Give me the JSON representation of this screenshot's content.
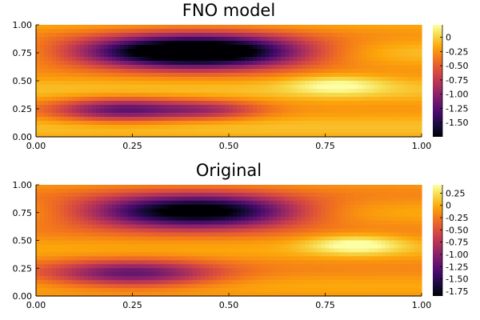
{
  "chart_data": [
    {
      "type": "heatmap",
      "title": "FNO model",
      "xlabel": "",
      "ylabel": "",
      "xlim": [
        0,
        1
      ],
      "ylim": [
        0,
        1
      ],
      "x_ticks": [
        "0.00",
        "0.25",
        "0.50",
        "0.75",
        "1.00"
      ],
      "y_ticks": [
        "0.00",
        "0.25",
        "0.50",
        "0.75",
        "1.00"
      ],
      "colormap": "inferno",
      "colorbar_range": [
        -1.75,
        0.22
      ],
      "colorbar_ticks": [
        "0",
        "-0.25",
        "-0.50",
        "-0.75",
        "-1.00",
        "-1.25",
        "-1.50"
      ],
      "features": [
        {
          "kind": "low",
          "x": 0.45,
          "y": 0.76,
          "depth": -1.95,
          "sx": 0.18,
          "sy": 0.1
        },
        {
          "kind": "low",
          "x": 0.25,
          "y": 0.76,
          "depth": -0.65,
          "sx": 0.16,
          "sy": 0.09
        },
        {
          "kind": "low",
          "x": 0.22,
          "y": 0.24,
          "depth": -0.95,
          "sx": 0.12,
          "sy": 0.07
        },
        {
          "kind": "low",
          "x": 0.45,
          "y": 0.24,
          "depth": -0.55,
          "sx": 0.1,
          "sy": 0.06
        },
        {
          "kind": "high",
          "x": 0.78,
          "y": 0.46,
          "height": 0.35,
          "sx": 0.09,
          "sy": 0.06
        }
      ],
      "base_value": -0.15
    },
    {
      "type": "heatmap",
      "title": "Original",
      "xlabel": "",
      "ylabel": "",
      "xlim": [
        0,
        1
      ],
      "ylim": [
        0,
        1
      ],
      "x_ticks": [
        "0.00",
        "0.25",
        "0.50",
        "0.75",
        "1.00"
      ],
      "y_ticks": [
        "0.00",
        "0.25",
        "0.50",
        "0.75",
        "1.00"
      ],
      "colormap": "inferno",
      "colorbar_range": [
        -1.85,
        0.42
      ],
      "colorbar_ticks": [
        "0.25",
        "0",
        "-0.25",
        "-0.50",
        "-0.75",
        "-1.00",
        "-1.25",
        "-1.50",
        "-1.75"
      ],
      "features": [
        {
          "kind": "low",
          "x": 0.46,
          "y": 0.76,
          "depth": -1.75,
          "sx": 0.16,
          "sy": 0.1
        },
        {
          "kind": "low",
          "x": 0.25,
          "y": 0.76,
          "depth": -0.7,
          "sx": 0.14,
          "sy": 0.1
        },
        {
          "kind": "low",
          "x": 0.25,
          "y": 0.2,
          "depth": -1.05,
          "sx": 0.15,
          "sy": 0.08
        },
        {
          "kind": "high",
          "x": 0.83,
          "y": 0.46,
          "height": 0.55,
          "sx": 0.09,
          "sy": 0.06
        }
      ],
      "base_value": -0.1
    }
  ]
}
